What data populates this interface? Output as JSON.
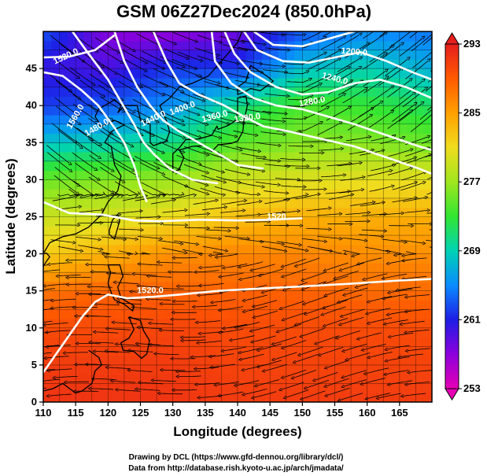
{
  "chart_data": {
    "type": "heatmap",
    "title": "GSM 06Z27Dec2024 (850.0hPa)",
    "xlabel": "Longitude (degrees)",
    "ylabel": "Latitude  (degrees)",
    "xlim": [
      110,
      170
    ],
    "ylim": [
      0,
      50
    ],
    "x_ticks": [
      "110",
      "115",
      "120",
      "125",
      "130",
      "135",
      "140",
      "145",
      "150",
      "155",
      "160",
      "165"
    ],
    "y_ticks": [
      "0",
      "5",
      "10",
      "15",
      "20",
      "25",
      "30",
      "35",
      "40",
      "45"
    ],
    "grid": true,
    "colorbar": {
      "min": 253,
      "max": 293,
      "ticks": [
        "253",
        "261",
        "269",
        "277",
        "285",
        "293"
      ],
      "colors": [
        "#e600b4",
        "#8c00dc",
        "#1e1ee6",
        "#0a8cff",
        "#00d2b4",
        "#32e632",
        "#a0e61e",
        "#f0dc1e",
        "#ffa000",
        "#ff5a00",
        "#e61e1e"
      ]
    },
    "temperature_field": {
      "units": "K",
      "latitudes": [
        0,
        5,
        10,
        15,
        20,
        25,
        30,
        35,
        40,
        45,
        50
      ],
      "longitudes": [
        110,
        120,
        130,
        140,
        150,
        160,
        170
      ],
      "values": [
        [
          291.5,
          291.5,
          291.5,
          291.0,
          291.0,
          291.0,
          291.0
        ],
        [
          291.0,
          291.0,
          291.0,
          290.5,
          290.5,
          290.5,
          290.5
        ],
        [
          290.0,
          290.0,
          290.5,
          290.0,
          290.0,
          290.0,
          290.0
        ],
        [
          287.5,
          288.5,
          288.5,
          288.5,
          288.5,
          288.0,
          288.0
        ],
        [
          282.0,
          284.0,
          286.0,
          286.5,
          286.5,
          286.0,
          286.0
        ],
        [
          279.0,
          279.5,
          281.0,
          283.0,
          284.0,
          284.0,
          284.0
        ],
        [
          275.0,
          276.0,
          277.0,
          279.5,
          280.0,
          280.5,
          280.5
        ],
        [
          268.0,
          269.0,
          270.5,
          274.5,
          276.0,
          276.0,
          275.0
        ],
        [
          262.0,
          263.0,
          265.5,
          270.5,
          274.0,
          273.0,
          271.5
        ],
        [
          260.0,
          259.5,
          262.0,
          262.0,
          268.0,
          269.0,
          267.0
        ],
        [
          263.0,
          257.0,
          256.5,
          258.0,
          263.0,
          265.0,
          264.0
        ]
      ]
    },
    "contour_labels": [
      "1520.0",
      "1560.0",
      "1480.0",
      "1440.0",
      "1400.0",
      "1360.0",
      "1320.0",
      "1280.0",
      "1240.0",
      "1200.0",
      "1520",
      "1520.0"
    ]
  },
  "credits": {
    "line1": "Drawing by DCL (https://www.gfd-dennou.org/library/dcl/)",
    "line2": "Data from http://database.rish.kyoto-u.ac.jp/arch/jmadata/"
  }
}
